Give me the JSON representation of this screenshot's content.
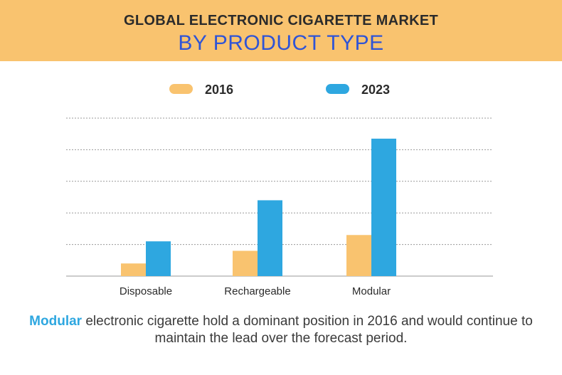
{
  "header": {
    "title_line1": "GLOBAL ELECTRONIC CIGARETTE MARKET",
    "title_line2": "BY PRODUCT TYPE"
  },
  "colors": {
    "banner": "#f9c36f",
    "series_2016": "#f9c36f",
    "series_2023": "#2ea7e0",
    "highlight": "#2ea7e0"
  },
  "chart_data": {
    "type": "bar",
    "categories": [
      "Disposable",
      "Rechargeable",
      "Modular"
    ],
    "series": [
      {
        "name": "2016",
        "values": [
          0.8,
          1.6,
          2.6
        ]
      },
      {
        "name": "2023",
        "values": [
          2.2,
          4.8,
          8.7
        ]
      }
    ],
    "ylim": [
      0,
      10
    ],
    "grid": true,
    "legend_position": "top-center",
    "xlabel": "",
    "ylabel": ""
  },
  "footer": {
    "highlight": "Modular",
    "text": " electronic cigarette hold a dominant position in 2016 and would continue to maintain the lead over the forecast period."
  }
}
